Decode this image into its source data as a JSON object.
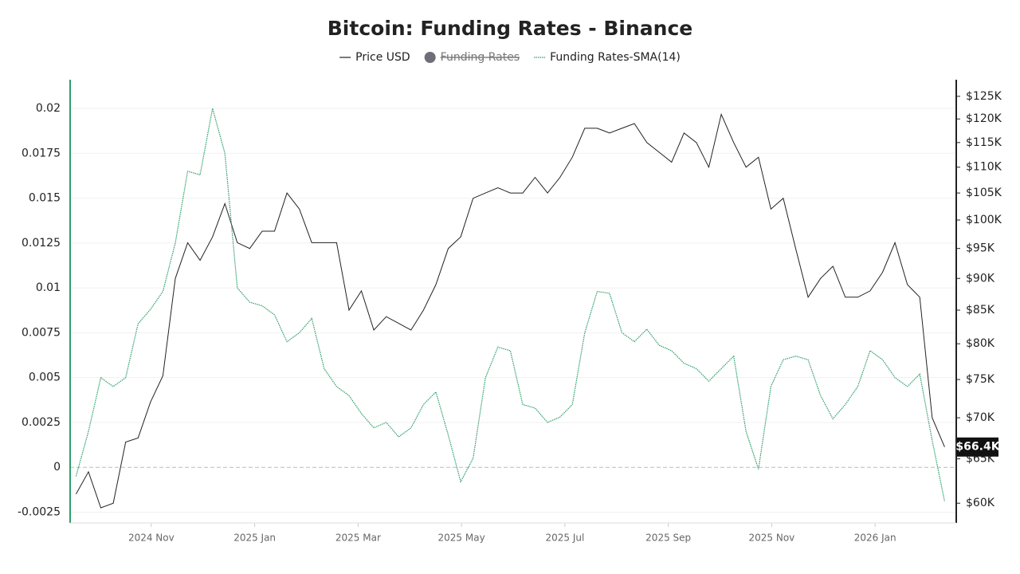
{
  "chart_data": {
    "type": "line",
    "title": "Bitcoin: Funding Rates - Binance",
    "x": [
      2024.712,
      2024.732,
      2024.752,
      2024.772,
      2024.792,
      2024.812,
      2024.832,
      2024.852,
      2024.872,
      2024.892,
      2024.912,
      2024.932,
      2024.952,
      2024.972,
      2024.992,
      2025.012,
      2025.032,
      2025.052,
      2025.072,
      2025.092,
      2025.112,
      2025.132,
      2025.152,
      2025.172,
      2025.192,
      2025.212,
      2025.232,
      2025.252,
      2025.272,
      2025.292,
      2025.312,
      2025.332,
      2025.352,
      2025.372,
      2025.392,
      2025.412,
      2025.432,
      2025.452,
      2025.472,
      2025.492,
      2025.512,
      2025.532,
      2025.552,
      2025.572,
      2025.592,
      2025.612,
      2025.632,
      2025.652,
      2025.672,
      2025.692,
      2025.712,
      2025.732,
      2025.752,
      2025.772,
      2025.792,
      2025.812,
      2025.832,
      2025.852,
      2025.872,
      2025.892,
      2025.912,
      2025.932,
      2025.952,
      2025.972,
      2025.992,
      2026.012,
      2026.032,
      2026.052,
      2026.072,
      2026.092,
      2026.112
    ],
    "series": [
      {
        "name": "Price USD",
        "color": "#222222",
        "axis": "y2",
        "style": "solid",
        "values": [
          61000,
          63500,
          59500,
          60000,
          67000,
          67500,
          72000,
          75500,
          90000,
          96000,
          93000,
          97000,
          103000,
          96000,
          95000,
          98000,
          98000,
          105000,
          102000,
          96000,
          96000,
          96000,
          85000,
          88000,
          82000,
          84000,
          83000,
          82000,
          85000,
          89000,
          95000,
          97000,
          104000,
          105000,
          106000,
          105000,
          105000,
          108000,
          105000,
          108000,
          112000,
          118000,
          118000,
          117000,
          118000,
          119000,
          115000,
          113000,
          111000,
          117000,
          115000,
          110000,
          121000,
          115000,
          110000,
          112000,
          102000,
          104000,
          95000,
          87000,
          90000,
          92000,
          87000,
          87000,
          88000,
          91000,
          96000,
          89000,
          87000,
          70000,
          66400
        ]
      },
      {
        "name": "Funding Rates",
        "color": "#6e6e78",
        "visible": false
      },
      {
        "name": "Funding Rates-SMA(14)",
        "color": "#2e9e6a",
        "axis": "y",
        "style": "dotted",
        "values": [
          -0.0005,
          0.002,
          0.005,
          0.0045,
          0.005,
          0.008,
          0.0088,
          0.0098,
          0.0125,
          0.0165,
          0.0163,
          0.02,
          0.0175,
          0.01,
          0.0092,
          0.009,
          0.0085,
          0.007,
          0.0075,
          0.0083,
          0.0055,
          0.0045,
          0.004,
          0.003,
          0.0022,
          0.0025,
          0.0017,
          0.0022,
          0.0035,
          0.0042,
          0.0018,
          -0.0008,
          0.0005,
          0.005,
          0.0067,
          0.0065,
          0.0035,
          0.0033,
          0.0025,
          0.0028,
          0.0035,
          0.0075,
          0.0098,
          0.0097,
          0.0075,
          0.007,
          0.0077,
          0.0068,
          0.0065,
          0.0058,
          0.0055,
          0.0048,
          0.0055,
          0.0062,
          0.002,
          -0.0001,
          0.0045,
          0.006,
          0.0062,
          0.006,
          0.004,
          0.0027,
          0.0035,
          0.0045,
          0.0065,
          0.006,
          0.005,
          0.0045,
          0.0052,
          0.0015,
          -0.0019
        ]
      }
    ],
    "xlim": [
      2024.7025,
      2026.1308
    ],
    "xticks": [
      {
        "value": 2024.8333,
        "label": "2024 Nov"
      },
      {
        "value": 2025.0,
        "label": "2025 Jan"
      },
      {
        "value": 2025.1667,
        "label": "2025 Mar"
      },
      {
        "value": 2025.3333,
        "label": "2025 May"
      },
      {
        "value": 2025.5,
        "label": "2025 Jul"
      },
      {
        "value": 2025.6667,
        "label": "2025 Sep"
      },
      {
        "value": 2025.8333,
        "label": "2025 Nov"
      },
      {
        "value": 2026.0,
        "label": "2026 Jan"
      }
    ],
    "ylim": [
      -0.0031,
      0.0216
    ],
    "yticks": [
      -0.0025,
      0,
      0.0025,
      0.005,
      0.0075,
      0.01,
      0.0125,
      0.015,
      0.0175,
      0.02
    ],
    "y2lim": [
      57900,
      128800
    ],
    "y2_log": true,
    "y2ticks": [
      {
        "value": 60000,
        "label": "$60K"
      },
      {
        "value": 65000,
        "label": "$65K"
      },
      {
        "value": 70000,
        "label": "$70K"
      },
      {
        "value": 75000,
        "label": "$75K"
      },
      {
        "value": 80000,
        "label": "$80K"
      },
      {
        "value": 85000,
        "label": "$85K"
      },
      {
        "value": 90000,
        "label": "$90K"
      },
      {
        "value": 95000,
        "label": "$95K"
      },
      {
        "value": 100000,
        "label": "$100K"
      },
      {
        "value": 105000,
        "label": "$105K"
      },
      {
        "value": 110000,
        "label": "$110K"
      },
      {
        "value": 115000,
        "label": "$115K"
      },
      {
        "value": 120000,
        "label": "$120K"
      },
      {
        "value": 125000,
        "label": "$125K"
      }
    ],
    "current_price": {
      "value": 66400,
      "label": "$66.4K"
    },
    "grid": true
  }
}
